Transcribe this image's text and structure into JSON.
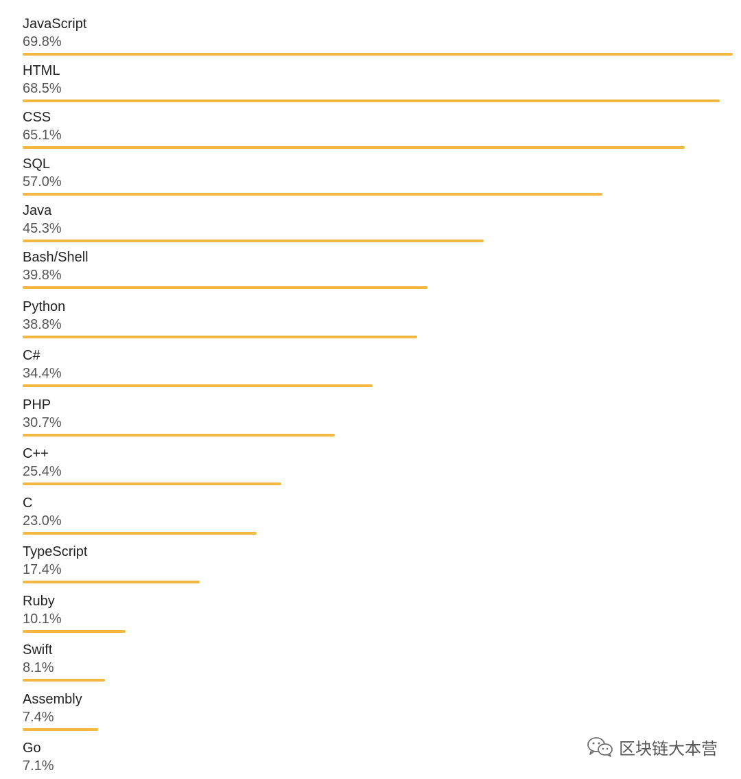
{
  "chart_data": {
    "type": "bar",
    "orientation": "horizontal",
    "bar_color": "#F4B73F",
    "categories": [
      "JavaScript",
      "HTML",
      "CSS",
      "SQL",
      "Java",
      "Bash/Shell",
      "Python",
      "C#",
      "PHP",
      "C++",
      "C",
      "TypeScript",
      "Ruby",
      "Swift",
      "Assembly",
      "Go"
    ],
    "values": [
      69.8,
      68.5,
      65.1,
      57.0,
      45.3,
      39.8,
      38.8,
      34.4,
      30.7,
      25.4,
      23.0,
      17.4,
      10.1,
      8.1,
      7.4,
      7.1
    ],
    "value_labels": [
      "69.8%",
      "68.5%",
      "65.1%",
      "57.0%",
      "45.3%",
      "39.8%",
      "38.8%",
      "34.4%",
      "30.7%",
      "25.4%",
      "23.0%",
      "17.4%",
      "10.1%",
      "8.1%",
      "7.4%",
      "7.1%"
    ],
    "unit": "%",
    "grid": false,
    "legend": "none",
    "xlim": [
      0,
      69.8
    ]
  },
  "watermark": {
    "icon": "wechat-icon",
    "text": "区块链大本营"
  }
}
